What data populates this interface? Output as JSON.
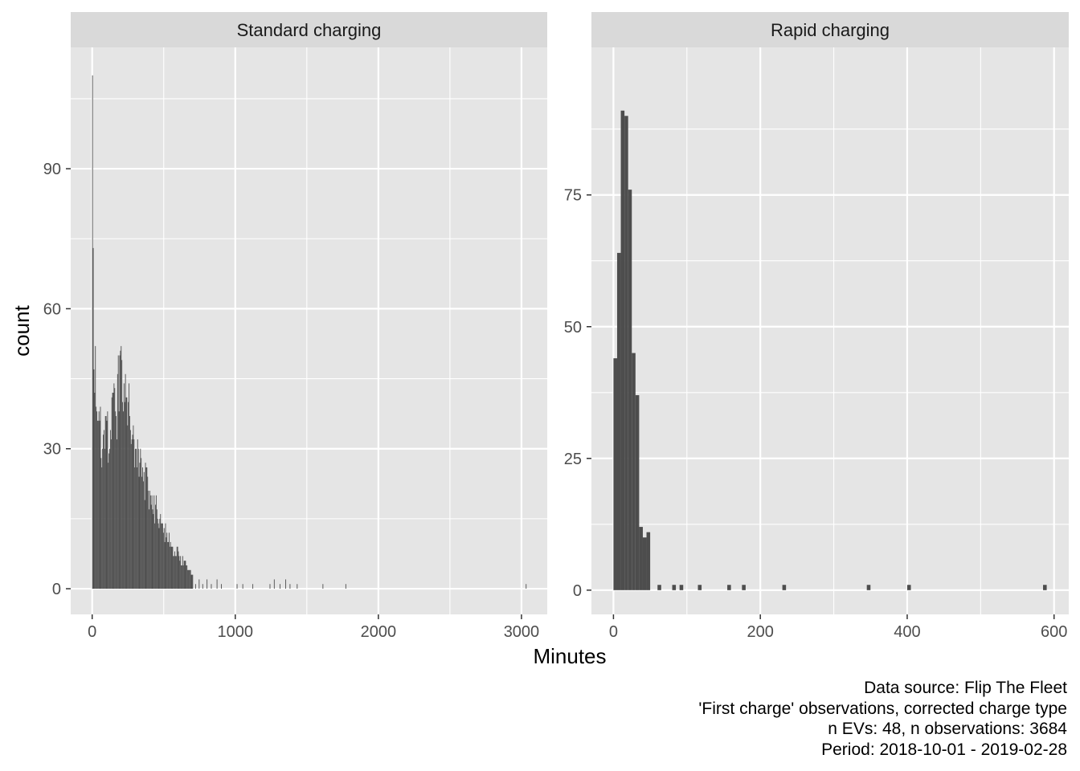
{
  "colors": {
    "panel_bg": "#e5e5e5",
    "strip_bg": "#d9d9d9",
    "grid_major": "#ffffff",
    "bar_fill": "#4d4d4d",
    "tick_text": "#4d4d4d",
    "tick_mark": "#333333"
  },
  "chart_data": {
    "type": "bar",
    "xlabel": "Minutes",
    "ylabel": "count",
    "caption": [
      "Data source: Flip The Fleet",
      "'First charge' observations, corrected charge type",
      "n EVs: 48, n observations: 3684",
      "Period: 2018-10-01 - 2019-02-28"
    ],
    "panels": [
      {
        "strip_label": "Standard charging",
        "xlim": [
          -150,
          3180
        ],
        "ylim": [
          -5.5,
          116
        ],
        "x_ticks": [
          0,
          1000,
          2000,
          3000
        ],
        "x_tick_labels": [
          "0",
          "1000",
          "2000",
          "3000"
        ],
        "y_ticks": [
          0,
          30,
          60,
          90
        ],
        "y_tick_labels": [
          "0",
          "30",
          "60",
          "90"
        ],
        "binwidth": 5,
        "peaks": [
          [
            0,
            110
          ],
          [
            5,
            73
          ],
          [
            10,
            47
          ],
          [
            15,
            42
          ],
          [
            20,
            52
          ],
          [
            30,
            38
          ],
          [
            50,
            36
          ],
          [
            80,
            34
          ],
          [
            100,
            36
          ],
          [
            120,
            30
          ],
          [
            140,
            42
          ],
          [
            160,
            38
          ],
          [
            180,
            50
          ],
          [
            200,
            52
          ],
          [
            220,
            44
          ],
          [
            250,
            40
          ],
          [
            280,
            33
          ],
          [
            300,
            30
          ],
          [
            330,
            27
          ],
          [
            360,
            25
          ],
          [
            400,
            21
          ],
          [
            440,
            18
          ],
          [
            480,
            14
          ],
          [
            520,
            12
          ],
          [
            560,
            9
          ],
          [
            600,
            8
          ],
          [
            640,
            6
          ],
          [
            680,
            4
          ],
          [
            700,
            3
          ]
        ],
        "sparse": [
          [
            720,
            1
          ],
          [
            745,
            2
          ],
          [
            770,
            1
          ],
          [
            800,
            2
          ],
          [
            830,
            1
          ],
          [
            870,
            2
          ],
          [
            900,
            1
          ],
          [
            1010,
            1
          ],
          [
            1050,
            1
          ],
          [
            1120,
            1
          ],
          [
            1240,
            1
          ],
          [
            1270,
            2
          ],
          [
            1310,
            1
          ],
          [
            1350,
            2
          ],
          [
            1380,
            1
          ],
          [
            1430,
            1
          ],
          [
            1610,
            1
          ],
          [
            1770,
            1
          ],
          [
            3030,
            1
          ]
        ]
      },
      {
        "strip_label": "Rapid charging",
        "xlim": [
          -30,
          620
        ],
        "ylim": [
          -4.6,
          103
        ],
        "x_ticks": [
          0,
          200,
          400,
          600
        ],
        "x_tick_labels": [
          "0",
          "200",
          "400",
          "600"
        ],
        "y_ticks": [
          0,
          25,
          50,
          75
        ],
        "y_tick_labels": [
          "0",
          "25",
          "50",
          "75"
        ],
        "binwidth": 5,
        "bins": [
          [
            0,
            44
          ],
          [
            5,
            64
          ],
          [
            10,
            91
          ],
          [
            15,
            90
          ],
          [
            20,
            76
          ],
          [
            25,
            45
          ],
          [
            30,
            37
          ],
          [
            35,
            12
          ],
          [
            40,
            10
          ],
          [
            45,
            11
          ],
          [
            60,
            1
          ],
          [
            80,
            1
          ],
          [
            90,
            1
          ],
          [
            115,
            1
          ],
          [
            155,
            1
          ],
          [
            175,
            1
          ],
          [
            230,
            1
          ],
          [
            345,
            1
          ],
          [
            400,
            1
          ],
          [
            585,
            1
          ]
        ]
      }
    ]
  }
}
